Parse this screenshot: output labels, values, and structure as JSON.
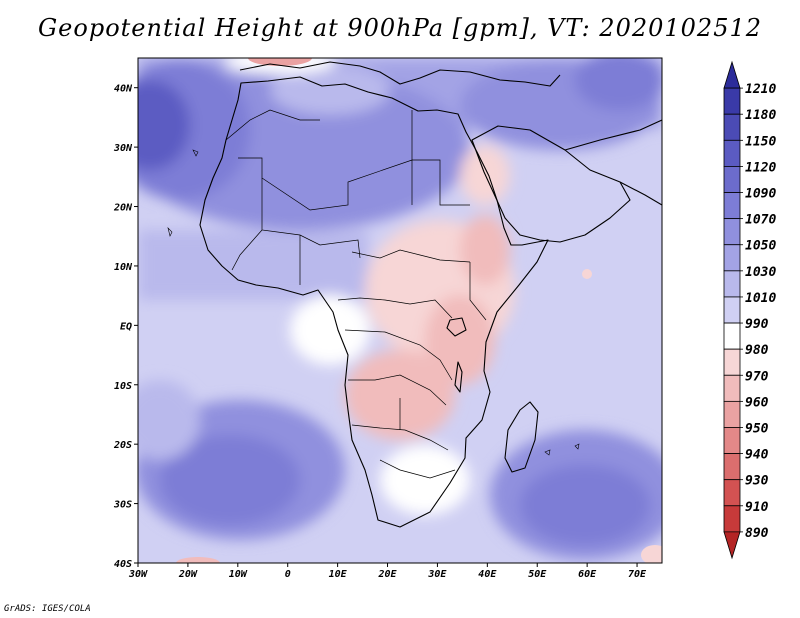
{
  "title": "Geopotential Height at 900hPa [gpm], VT: 2020102512",
  "credit": "GrADS: IGES/COLA",
  "map": {
    "region": "Africa",
    "lon_range": [
      -30,
      75
    ],
    "lat_range": [
      -40,
      45
    ],
    "lon_ticks": [
      {
        "lon": -30,
        "label": "30W"
      },
      {
        "lon": -20,
        "label": "20W"
      },
      {
        "lon": -10,
        "label": "10W"
      },
      {
        "lon": 0,
        "label": "0"
      },
      {
        "lon": 10,
        "label": "10E"
      },
      {
        "lon": 20,
        "label": "20E"
      },
      {
        "lon": 30,
        "label": "30E"
      },
      {
        "lon": 40,
        "label": "40E"
      },
      {
        "lon": 50,
        "label": "50E"
      },
      {
        "lon": 60,
        "label": "60E"
      },
      {
        "lon": 70,
        "label": "70E"
      }
    ],
    "lat_ticks": [
      {
        "lat": 40,
        "label": "40N"
      },
      {
        "lat": 30,
        "label": "30N"
      },
      {
        "lat": 20,
        "label": "20N"
      },
      {
        "lat": 10,
        "label": "10N"
      },
      {
        "lat": 0,
        "label": "EQ"
      },
      {
        "lat": -10,
        "label": "10S"
      },
      {
        "lat": -20,
        "label": "20S"
      },
      {
        "lat": -30,
        "label": "30S"
      },
      {
        "lat": -40,
        "label": "40S"
      }
    ]
  },
  "colorbar": {
    "labels": [
      "1210",
      "1180",
      "1150",
      "1120",
      "1090",
      "1070",
      "1050",
      "1030",
      "1010",
      "990",
      "980",
      "970",
      "960",
      "950",
      "940",
      "930",
      "910",
      "890"
    ],
    "colors": [
      "#2c2c9a",
      "#3a3aa8",
      "#4b4bb5",
      "#5b5bc2",
      "#6c6ccc",
      "#7d7dd6",
      "#9090de",
      "#a3a3e5",
      "#b9b9ec",
      "#d0d0f3",
      "#ffffff",
      "#f7d6d6",
      "#f1bcbc",
      "#eaa2a2",
      "#e38888",
      "#db6e6e",
      "#d35252",
      "#c73a3a",
      "#b42424"
    ]
  },
  "colors": {
    "ocean_base": "#d0d0f3",
    "coast": "#000000"
  }
}
